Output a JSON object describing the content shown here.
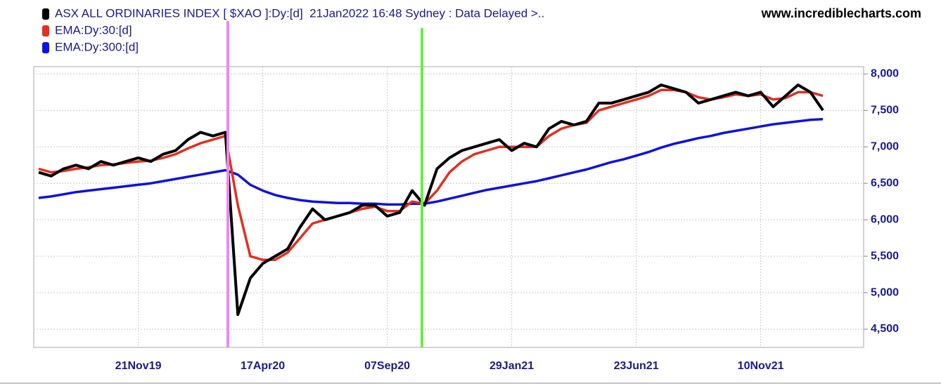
{
  "chart_data": {
    "type": "line",
    "source": "www.incrediblecharts.com",
    "categories": [
      null,
      null,
      null,
      null,
      null,
      null,
      null,
      null,
      "21Nov19",
      null,
      null,
      null,
      null,
      null,
      null,
      null,
      null,
      null,
      "17Apr20",
      null,
      null,
      null,
      null,
      null,
      null,
      null,
      null,
      null,
      "07Sep20",
      null,
      null,
      null,
      null,
      null,
      null,
      null,
      null,
      null,
      "29Jan21",
      null,
      null,
      null,
      null,
      null,
      null,
      null,
      null,
      null,
      "23Jun21",
      null,
      null,
      null,
      null,
      null,
      null,
      null,
      null,
      null,
      "10Nov21",
      null,
      null,
      null,
      null,
      null
    ],
    "series": [
      {
        "name": "ASX ALL ORDINARIES INDEX [ $XAO ]:Dy:[d]  21Jan2022 16:48 Sydney : Data Delayed >..",
        "color": "#000000",
        "values": [
          6650,
          6600,
          6700,
          6750,
          6700,
          6800,
          6750,
          6800,
          6850,
          6800,
          6900,
          6950,
          7100,
          7200,
          7150,
          7200,
          4700,
          5200,
          5400,
          5500,
          5600,
          5900,
          6150,
          6000,
          6050,
          6100,
          6200,
          6200,
          6050,
          6100,
          6400,
          6200,
          6700,
          6850,
          6950,
          7000,
          7050,
          7100,
          6950,
          7050,
          7000,
          7250,
          7350,
          7300,
          7350,
          7600,
          7600,
          7650,
          7700,
          7750,
          7850,
          7800,
          7750,
          7600,
          7650,
          7700,
          7750,
          7700,
          7750,
          7550,
          7700,
          7850,
          7750,
          7500
        ]
      },
      {
        "name": "EMA:Dy:30:[d]",
        "color": "#e03020",
        "values": [
          6700,
          6650,
          6670,
          6700,
          6720,
          6750,
          6760,
          6780,
          6800,
          6810,
          6850,
          6900,
          6980,
          7050,
          7100,
          7150,
          6200,
          5500,
          5450,
          5450,
          5550,
          5750,
          5950,
          6000,
          6050,
          6100,
          6150,
          6180,
          6120,
          6120,
          6250,
          6220,
          6400,
          6650,
          6800,
          6900,
          6950,
          7000,
          7000,
          7000,
          7000,
          7150,
          7250,
          7300,
          7330,
          7500,
          7550,
          7600,
          7650,
          7700,
          7780,
          7780,
          7750,
          7680,
          7650,
          7680,
          7720,
          7700,
          7720,
          7650,
          7670,
          7750,
          7750,
          7700
        ]
      },
      {
        "name": "EMA:Dy:300:[d]",
        "color": "#1010e0",
        "values": [
          6300,
          6320,
          6350,
          6380,
          6400,
          6420,
          6440,
          6460,
          6480,
          6500,
          6530,
          6560,
          6590,
          6620,
          6650,
          6680,
          6620,
          6480,
          6400,
          6340,
          6300,
          6270,
          6250,
          6240,
          6230,
          6230,
          6220,
          6220,
          6210,
          6210,
          6220,
          6220,
          6250,
          6290,
          6330,
          6370,
          6410,
          6440,
          6470,
          6500,
          6530,
          6570,
          6610,
          6650,
          6690,
          6740,
          6790,
          6830,
          6880,
          6930,
          6990,
          7040,
          7080,
          7120,
          7150,
          7190,
          7220,
          7250,
          7280,
          7310,
          7330,
          7350,
          7370,
          7380
        ]
      }
    ],
    "ylim": [
      4250,
      8100
    ],
    "yticks": [
      {
        "value": 4500,
        "label": "4,500"
      },
      {
        "value": 5000,
        "label": "5,000"
      },
      {
        "value": 5500,
        "label": "5,500"
      },
      {
        "value": 6000,
        "label": "6,000"
      },
      {
        "value": 6500,
        "label": "6,500"
      },
      {
        "value": 7000,
        "label": "7,000"
      },
      {
        "value": 7500,
        "label": "7,500"
      },
      {
        "value": 8000,
        "label": "8,000"
      }
    ],
    "grid": true
  }
}
